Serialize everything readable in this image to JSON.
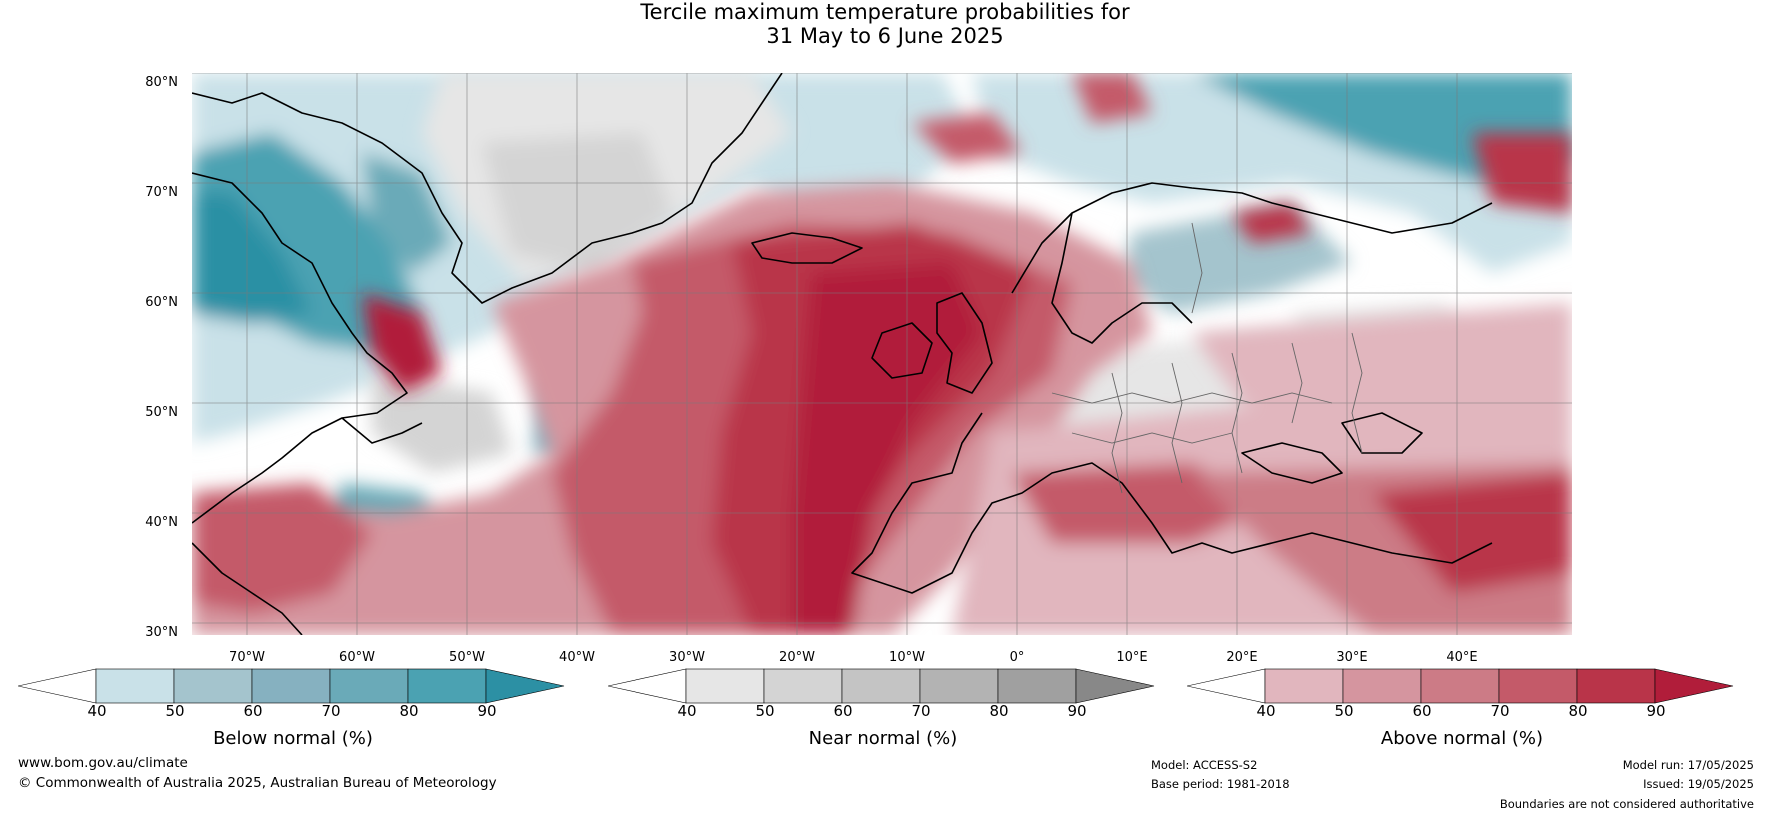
{
  "title": {
    "line1": "Tercile maximum temperature probabilities for",
    "line2": "31 May to 6 June 2025"
  },
  "map": {
    "lat_labels": [
      "80°N",
      "70°N",
      "60°N",
      "50°N",
      "40°N",
      "30°N"
    ],
    "lon_labels": [
      "70°W",
      "60°W",
      "50°W",
      "40°W",
      "30°W",
      "20°W",
      "10°W",
      "0°",
      "10°E",
      "20°E",
      "30°E",
      "40°E"
    ],
    "region": "North Atlantic and Europe",
    "lat_range": [
      30,
      81
    ],
    "lon_range": [
      -77,
      48
    ]
  },
  "colorbars": [
    {
      "name": "below",
      "title": "Below normal (%)",
      "ticks": [
        "40",
        "50",
        "60",
        "70",
        "80",
        "90"
      ],
      "colors": [
        "#ffffff",
        "#c9e1e8",
        "#a4c4cd",
        "#86b1c0",
        "#6aaab8",
        "#4ba2b2",
        "#2c90a4"
      ]
    },
    {
      "name": "near",
      "title": "Near normal (%)",
      "ticks": [
        "40",
        "50",
        "60",
        "70",
        "80",
        "90"
      ],
      "colors": [
        "#ffffff",
        "#e6e6e6",
        "#d4d4d4",
        "#c4c4c4",
        "#b3b3b3",
        "#a0a0a0",
        "#888888"
      ]
    },
    {
      "name": "above",
      "title": "Above normal (%)",
      "ticks": [
        "40",
        "50",
        "60",
        "70",
        "80",
        "90"
      ],
      "colors": [
        "#ffffff",
        "#e1b6be",
        "#d5959f",
        "#cc7b86",
        "#c45a69",
        "#b93449",
        "#b11d3a"
      ]
    }
  ],
  "footer": {
    "website": "www.bom.gov.au/climate",
    "copyright": "© Commonwealth of Australia 2025, Australian Bureau of Meteorology",
    "model": "Model: ACCESS-S2",
    "base_period": "Base period: 1981-2018",
    "model_run": "Model run: 17/05/2025",
    "issued": "Issued: 19/05/2025",
    "disclaimer": "Boundaries are not considered authoritative"
  }
}
